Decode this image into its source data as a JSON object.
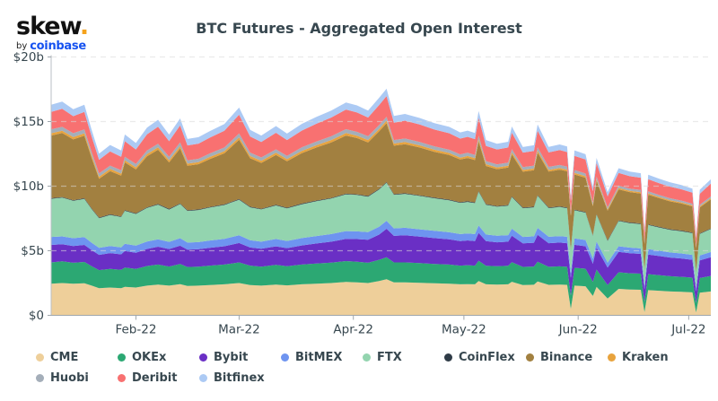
{
  "logo": {
    "brand": "skew",
    "brand_dot": ".",
    "byline_prefix": "by",
    "byline_brand": "coinbase"
  },
  "title": "BTC Futures - Aggregated Open Interest",
  "axes": {
    "y_ticks": [
      {
        "label": "$20b",
        "value": 20
      },
      {
        "label": "$15b",
        "value": 15
      },
      {
        "label": "$10b",
        "value": 10
      },
      {
        "label": "$5b",
        "value": 5
      },
      {
        "label": "$0",
        "value": 0
      }
    ],
    "x_ticks": [
      {
        "label": "Feb-22",
        "day": 23
      },
      {
        "label": "Mar-22",
        "day": 51
      },
      {
        "label": "Apr-22",
        "day": 82
      },
      {
        "label": "May-22",
        "day": 112
      },
      {
        "label": "Jun-22",
        "day": 143
      },
      {
        "label": "Jul-22",
        "day": 173
      }
    ]
  },
  "legend": {
    "rows": [
      [
        "CME",
        "OKEx",
        "Bybit",
        "BitMEX",
        "FTX",
        "CoinFlex",
        "Binance",
        "Kraken"
      ],
      [
        "Huobi",
        "Deribit",
        "Bitfinex"
      ]
    ]
  },
  "chart_data": {
    "type": "area",
    "stacked": true,
    "title": "BTC Futures - Aggregated Open Interest",
    "unit": "USD billions",
    "ylim": [
      0,
      20
    ],
    "y_gridlines": [
      5,
      10,
      15,
      20
    ],
    "grid": "dashed",
    "legend_position": "bottom",
    "x_unit": "days since 2022-01-09",
    "x_range_dates": [
      "2022-01-09",
      "2022-07-07"
    ],
    "x_domain": [
      0,
      179
    ],
    "days": [
      0,
      3,
      6,
      9,
      11,
      13,
      16,
      19,
      20,
      23,
      26,
      29,
      32,
      35,
      37,
      40,
      43,
      47,
      51,
      54,
      57,
      61,
      64,
      68,
      72,
      76,
      80,
      83,
      86,
      89,
      91,
      93,
      96,
      100,
      104,
      108,
      111,
      113,
      115,
      116,
      118,
      121,
      124,
      125,
      128,
      131,
      132,
      135,
      138,
      140,
      141,
      142,
      145,
      147,
      148,
      151,
      154,
      157,
      160,
      161,
      162,
      165,
      168,
      171,
      174,
      175,
      176,
      179
    ],
    "series": [
      {
        "name": "CME",
        "color": "#eecf9a",
        "values": [
          2.45,
          2.5,
          2.45,
          2.48,
          2.3,
          2.1,
          2.15,
          2.1,
          2.2,
          2.15,
          2.3,
          2.38,
          2.3,
          2.42,
          2.28,
          2.3,
          2.35,
          2.4,
          2.5,
          2.35,
          2.3,
          2.38,
          2.32,
          2.4,
          2.45,
          2.5,
          2.58,
          2.55,
          2.5,
          2.65,
          2.8,
          2.55,
          2.55,
          2.52,
          2.48,
          2.45,
          2.4,
          2.42,
          2.4,
          2.65,
          2.4,
          2.38,
          2.4,
          2.6,
          2.35,
          2.37,
          2.62,
          2.36,
          2.38,
          2.36,
          0.5,
          2.3,
          2.25,
          1.5,
          2.2,
          1.3,
          2.05,
          2.0,
          1.98,
          0.25,
          1.95,
          1.9,
          1.85,
          1.82,
          1.78,
          0.22,
          1.76,
          1.85
        ]
      },
      {
        "name": "OKEx",
        "color": "#2ca873",
        "values": [
          1.65,
          1.68,
          1.62,
          1.65,
          1.5,
          1.4,
          1.45,
          1.42,
          1.5,
          1.45,
          1.52,
          1.55,
          1.48,
          1.55,
          1.46,
          1.47,
          1.5,
          1.53,
          1.6,
          1.5,
          1.47,
          1.52,
          1.48,
          1.53,
          1.56,
          1.58,
          1.62,
          1.6,
          1.57,
          1.65,
          1.7,
          1.55,
          1.55,
          1.52,
          1.5,
          1.48,
          1.45,
          1.46,
          1.45,
          1.58,
          1.44,
          1.42,
          1.43,
          1.52,
          1.4,
          1.41,
          1.53,
          1.4,
          1.41,
          1.4,
          1.05,
          1.38,
          1.36,
          1.1,
          1.34,
          1.05,
          1.28,
          1.26,
          1.25,
          0.8,
          1.24,
          1.21,
          1.18,
          1.16,
          1.14,
          0.75,
          1.13,
          1.2
        ]
      },
      {
        "name": "Bybit",
        "color": "#6a2fc5",
        "values": [
          1.35,
          1.33,
          1.3,
          1.32,
          1.25,
          1.18,
          1.22,
          1.2,
          1.28,
          1.25,
          1.32,
          1.38,
          1.35,
          1.42,
          1.34,
          1.35,
          1.38,
          1.42,
          1.5,
          1.4,
          1.38,
          1.44,
          1.4,
          1.48,
          1.55,
          1.62,
          1.72,
          1.75,
          1.78,
          1.95,
          2.2,
          2.05,
          2.1,
          2.05,
          2.0,
          1.95,
          1.9,
          1.92,
          1.9,
          2.15,
          1.9,
          1.85,
          1.87,
          2.05,
          1.82,
          1.84,
          2.08,
          1.82,
          1.84,
          1.82,
          1.35,
          1.78,
          1.74,
          1.4,
          1.7,
          1.35,
          1.58,
          1.55,
          1.53,
          0.95,
          1.52,
          1.48,
          1.44,
          1.42,
          1.38,
          0.88,
          1.37,
          1.45
        ]
      },
      {
        "name": "BitMEX",
        "color": "#6e94f0",
        "values": [
          0.62,
          0.6,
          0.6,
          0.61,
          0.57,
          0.54,
          0.55,
          0.54,
          0.56,
          0.55,
          0.57,
          0.58,
          0.56,
          0.58,
          0.55,
          0.55,
          0.56,
          0.57,
          0.6,
          0.56,
          0.55,
          0.57,
          0.56,
          0.57,
          0.58,
          0.59,
          0.6,
          0.6,
          0.59,
          0.61,
          0.62,
          0.58,
          0.58,
          0.57,
          0.56,
          0.55,
          0.54,
          0.54,
          0.54,
          0.57,
          0.52,
          0.51,
          0.51,
          0.54,
          0.5,
          0.5,
          0.54,
          0.5,
          0.5,
          0.5,
          0.4,
          0.49,
          0.48,
          0.4,
          0.47,
          0.38,
          0.44,
          0.43,
          0.42,
          0.28,
          0.42,
          0.41,
          0.4,
          0.39,
          0.38,
          0.26,
          0.38,
          0.4
        ]
      },
      {
        "name": "FTX",
        "color": "#93d4af",
        "values": [
          2.95,
          3.0,
          2.9,
          2.95,
          2.6,
          2.3,
          2.4,
          2.35,
          2.55,
          2.45,
          2.6,
          2.68,
          2.5,
          2.65,
          2.45,
          2.48,
          2.55,
          2.62,
          2.75,
          2.55,
          2.5,
          2.6,
          2.52,
          2.62,
          2.7,
          2.75,
          2.85,
          2.82,
          2.75,
          2.88,
          2.95,
          2.6,
          2.62,
          2.58,
          2.52,
          2.48,
          2.42,
          2.44,
          2.4,
          2.62,
          2.3,
          2.25,
          2.28,
          2.45,
          2.22,
          2.24,
          2.48,
          2.22,
          2.25,
          2.22,
          1.75,
          2.18,
          2.12,
          1.75,
          2.08,
          1.68,
          1.95,
          1.9,
          1.88,
          1.25,
          1.86,
          1.8,
          1.75,
          1.72,
          1.68,
          1.25,
          1.66,
          1.78
        ]
      },
      {
        "name": "CoinFlex",
        "color": "#2f3b47",
        "const": 0.05
      },
      {
        "name": "Binance",
        "color": "#a28040",
        "values": [
          4.85,
          4.95,
          4.7,
          4.85,
          3.9,
          3.0,
          3.35,
          3.15,
          3.7,
          3.4,
          3.95,
          4.2,
          3.6,
          4.25,
          3.45,
          3.5,
          3.7,
          3.95,
          4.6,
          3.75,
          3.55,
          3.85,
          3.6,
          3.9,
          4.1,
          4.3,
          4.5,
          4.35,
          4.15,
          4.45,
          4.55,
          3.75,
          3.8,
          3.7,
          3.55,
          3.45,
          3.3,
          3.35,
          3.28,
          3.85,
          2.95,
          2.85,
          2.9,
          3.25,
          2.78,
          2.82,
          3.3,
          2.78,
          2.85,
          2.8,
          2.6,
          2.72,
          2.65,
          2.25,
          2.58,
          2.3,
          2.4,
          2.35,
          2.32,
          1.95,
          2.3,
          2.22,
          2.15,
          2.1,
          2.02,
          1.8,
          2.0,
          2.25
        ]
      },
      {
        "name": "Kraken",
        "color": "#e8a33d",
        "values": [
          0.18,
          0.18,
          0.18,
          0.18,
          0.17,
          0.16,
          0.16,
          0.16,
          0.17,
          0.16,
          0.17,
          0.18,
          0.17,
          0.18,
          0.16,
          0.16,
          0.17,
          0.17,
          0.18,
          0.17,
          0.16,
          0.17,
          0.16,
          0.17,
          0.18,
          0.18,
          0.19,
          0.18,
          0.18,
          0.19,
          0.2,
          0.17,
          0.17,
          0.17,
          0.16,
          0.16,
          0.15,
          0.15,
          0.15,
          0.16,
          0.14,
          0.14,
          0.14,
          0.15,
          0.13,
          0.13,
          0.15,
          0.13,
          0.13,
          0.13,
          0.1,
          0.13,
          0.12,
          0.1,
          0.12,
          0.09,
          0.11,
          0.1,
          0.1,
          0.07,
          0.1,
          0.09,
          0.09,
          0.08,
          0.08,
          0.06,
          0.08,
          0.08
        ]
      },
      {
        "name": "Huobi",
        "color": "#a4aeb9",
        "values": [
          0.3,
          0.3,
          0.3,
          0.3,
          0.28,
          0.26,
          0.26,
          0.26,
          0.27,
          0.26,
          0.28,
          0.28,
          0.27,
          0.28,
          0.26,
          0.26,
          0.27,
          0.28,
          0.3,
          0.27,
          0.26,
          0.27,
          0.26,
          0.28,
          0.28,
          0.29,
          0.3,
          0.3,
          0.29,
          0.3,
          0.3,
          0.27,
          0.27,
          0.26,
          0.26,
          0.25,
          0.25,
          0.25,
          0.25,
          0.27,
          0.24,
          0.24,
          0.24,
          0.25,
          0.23,
          0.23,
          0.25,
          0.23,
          0.23,
          0.23,
          0.18,
          0.22,
          0.21,
          0.17,
          0.2,
          0.16,
          0.18,
          0.17,
          0.17,
          0.12,
          0.16,
          0.15,
          0.15,
          0.14,
          0.13,
          0.1,
          0.13,
          0.14
        ]
      },
      {
        "name": "Deribit",
        "color": "#f87171",
        "values": [
          1.35,
          1.4,
          1.32,
          1.36,
          1.2,
          1.05,
          1.1,
          1.05,
          1.2,
          1.12,
          1.25,
          1.32,
          1.2,
          1.32,
          1.15,
          1.17,
          1.22,
          1.3,
          1.45,
          1.25,
          1.2,
          1.28,
          1.22,
          1.3,
          1.38,
          1.45,
          1.52,
          1.5,
          1.45,
          1.55,
          1.6,
          1.35,
          1.38,
          1.35,
          1.3,
          1.28,
          1.22,
          1.24,
          1.22,
          1.4,
          1.18,
          1.15,
          1.17,
          1.28,
          1.12,
          1.14,
          1.3,
          1.12,
          1.15,
          1.13,
          0.85,
          1.1,
          1.08,
          0.9,
          1.05,
          0.85,
          0.98,
          0.96,
          0.95,
          0.68,
          0.94,
          0.92,
          0.9,
          0.88,
          0.86,
          0.62,
          0.85,
          1.0
        ]
      },
      {
        "name": "Bitfinex",
        "color": "#accaf4",
        "values": [
          0.55,
          0.56,
          0.54,
          0.55,
          0.52,
          0.48,
          0.5,
          0.48,
          0.52,
          0.5,
          0.52,
          0.54,
          0.51,
          0.54,
          0.5,
          0.5,
          0.51,
          0.52,
          0.55,
          0.51,
          0.5,
          0.52,
          0.5,
          0.52,
          0.53,
          0.54,
          0.55,
          0.55,
          0.54,
          0.56,
          0.57,
          0.52,
          0.52,
          0.51,
          0.5,
          0.49,
          0.48,
          0.48,
          0.48,
          0.52,
          0.45,
          0.44,
          0.45,
          0.48,
          0.43,
          0.44,
          0.48,
          0.43,
          0.44,
          0.43,
          0.32,
          0.42,
          0.41,
          0.34,
          0.4,
          0.32,
          0.37,
          0.36,
          0.35,
          0.25,
          0.35,
          0.34,
          0.33,
          0.32,
          0.31,
          0.22,
          0.31,
          0.33
        ]
      }
    ]
  },
  "colors": {
    "accent_orange": "#f5a31c",
    "coinbase_blue": "#1652f0",
    "grid": "#d9d9d9",
    "axis": "#9fa6ac",
    "text": "#37474f"
  }
}
